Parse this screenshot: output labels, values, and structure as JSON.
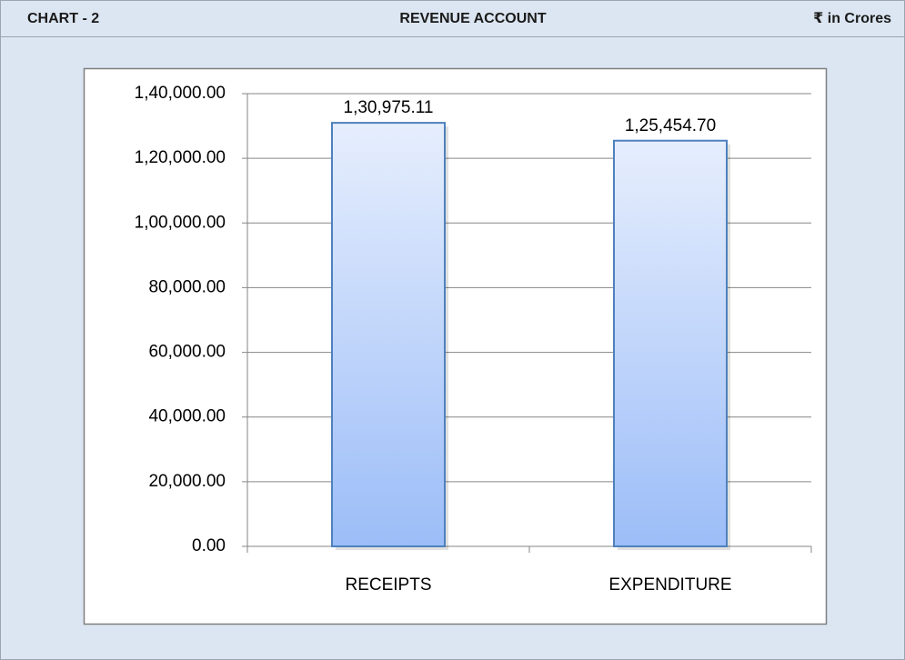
{
  "chart_data": {
    "type": "bar",
    "chart_label": "CHART - 2",
    "title": "REVENUE ACCOUNT",
    "unit_label": "₹ in Crores",
    "categories": [
      "RECEIPTS",
      "EXPENDITURE"
    ],
    "values": [
      130975.11,
      125454.7
    ],
    "value_labels": [
      "1,30,975.11",
      "1,25,454.70"
    ],
    "color": "#4f81bd",
    "ylim": [
      0,
      140000
    ],
    "yticks": [
      {
        "value": 0,
        "label": "0.00"
      },
      {
        "value": 20000,
        "label": "20,000.00"
      },
      {
        "value": 40000,
        "label": "40,000.00"
      },
      {
        "value": 60000,
        "label": "60,000.00"
      },
      {
        "value": 80000,
        "label": "80,000.00"
      },
      {
        "value": 100000,
        "label": "1,00,000.00"
      },
      {
        "value": 120000,
        "label": "1,20,000.00"
      },
      {
        "value": 140000,
        "label": "1,40,000.00"
      }
    ],
    "grid": true
  }
}
